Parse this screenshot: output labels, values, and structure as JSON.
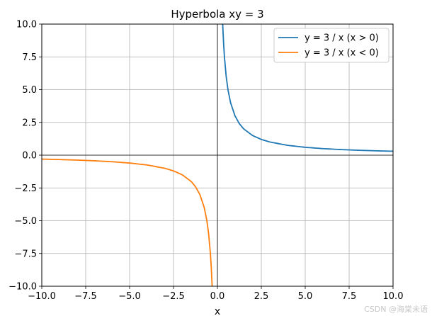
{
  "chart_data": {
    "type": "line",
    "title": "Hyperbola xy = 3",
    "xlabel": "x",
    "ylabel": "",
    "xlim": [
      -10,
      10
    ],
    "ylim": [
      -10,
      10
    ],
    "xticks": [
      -10.0,
      -7.5,
      -5.0,
      -2.5,
      0.0,
      2.5,
      5.0,
      7.5,
      10.0
    ],
    "xtick_labels": [
      "−10.0",
      "−7.5",
      "−5.0",
      "−2.5",
      "0.0",
      "2.5",
      "5.0",
      "7.5",
      "10.0"
    ],
    "yticks": [
      -10.0,
      -7.5,
      -5.0,
      -2.5,
      0.0,
      2.5,
      5.0,
      7.5,
      10.0
    ],
    "ytick_labels": [
      "−10.0",
      "−7.5",
      "−5.0",
      "−2.5",
      "0.0",
      "2.5",
      "5.0",
      "7.5",
      "10.0"
    ],
    "grid": true,
    "legend_position": "top-right",
    "series": [
      {
        "name": "y = 3 / x (x > 0)",
        "color": "#1f77b4",
        "x": [
          0.3,
          0.35,
          0.4,
          0.5,
          0.6,
          0.75,
          1.0,
          1.25,
          1.5,
          2.0,
          2.5,
          3.0,
          4.0,
          5.0,
          6.0,
          7.0,
          8.0,
          9.0,
          10.0
        ],
        "y": [
          10.0,
          8.571,
          7.5,
          6.0,
          5.0,
          4.0,
          3.0,
          2.4,
          2.0,
          1.5,
          1.2,
          1.0,
          0.75,
          0.6,
          0.5,
          0.429,
          0.375,
          0.333,
          0.3
        ]
      },
      {
        "name": "y = 3 / x (x < 0)",
        "color": "#ff7f0e",
        "x": [
          -10.0,
          -9.0,
          -8.0,
          -7.0,
          -6.0,
          -5.0,
          -4.0,
          -3.0,
          -2.5,
          -2.0,
          -1.5,
          -1.25,
          -1.0,
          -0.75,
          -0.6,
          -0.5,
          -0.4,
          -0.35,
          -0.3
        ],
        "y": [
          -0.3,
          -0.333,
          -0.375,
          -0.429,
          -0.5,
          -0.6,
          -0.75,
          -1.0,
          -1.2,
          -1.5,
          -2.0,
          -2.4,
          -3.0,
          -4.0,
          -5.0,
          -6.0,
          -7.5,
          -8.571,
          -10.0
        ]
      }
    ],
    "reference_lines": [
      {
        "axis": "y",
        "value": 0,
        "color": "#000000"
      },
      {
        "axis": "x",
        "value": 0,
        "color": "#000000"
      }
    ]
  },
  "watermark": "CSDN @海棠未语"
}
